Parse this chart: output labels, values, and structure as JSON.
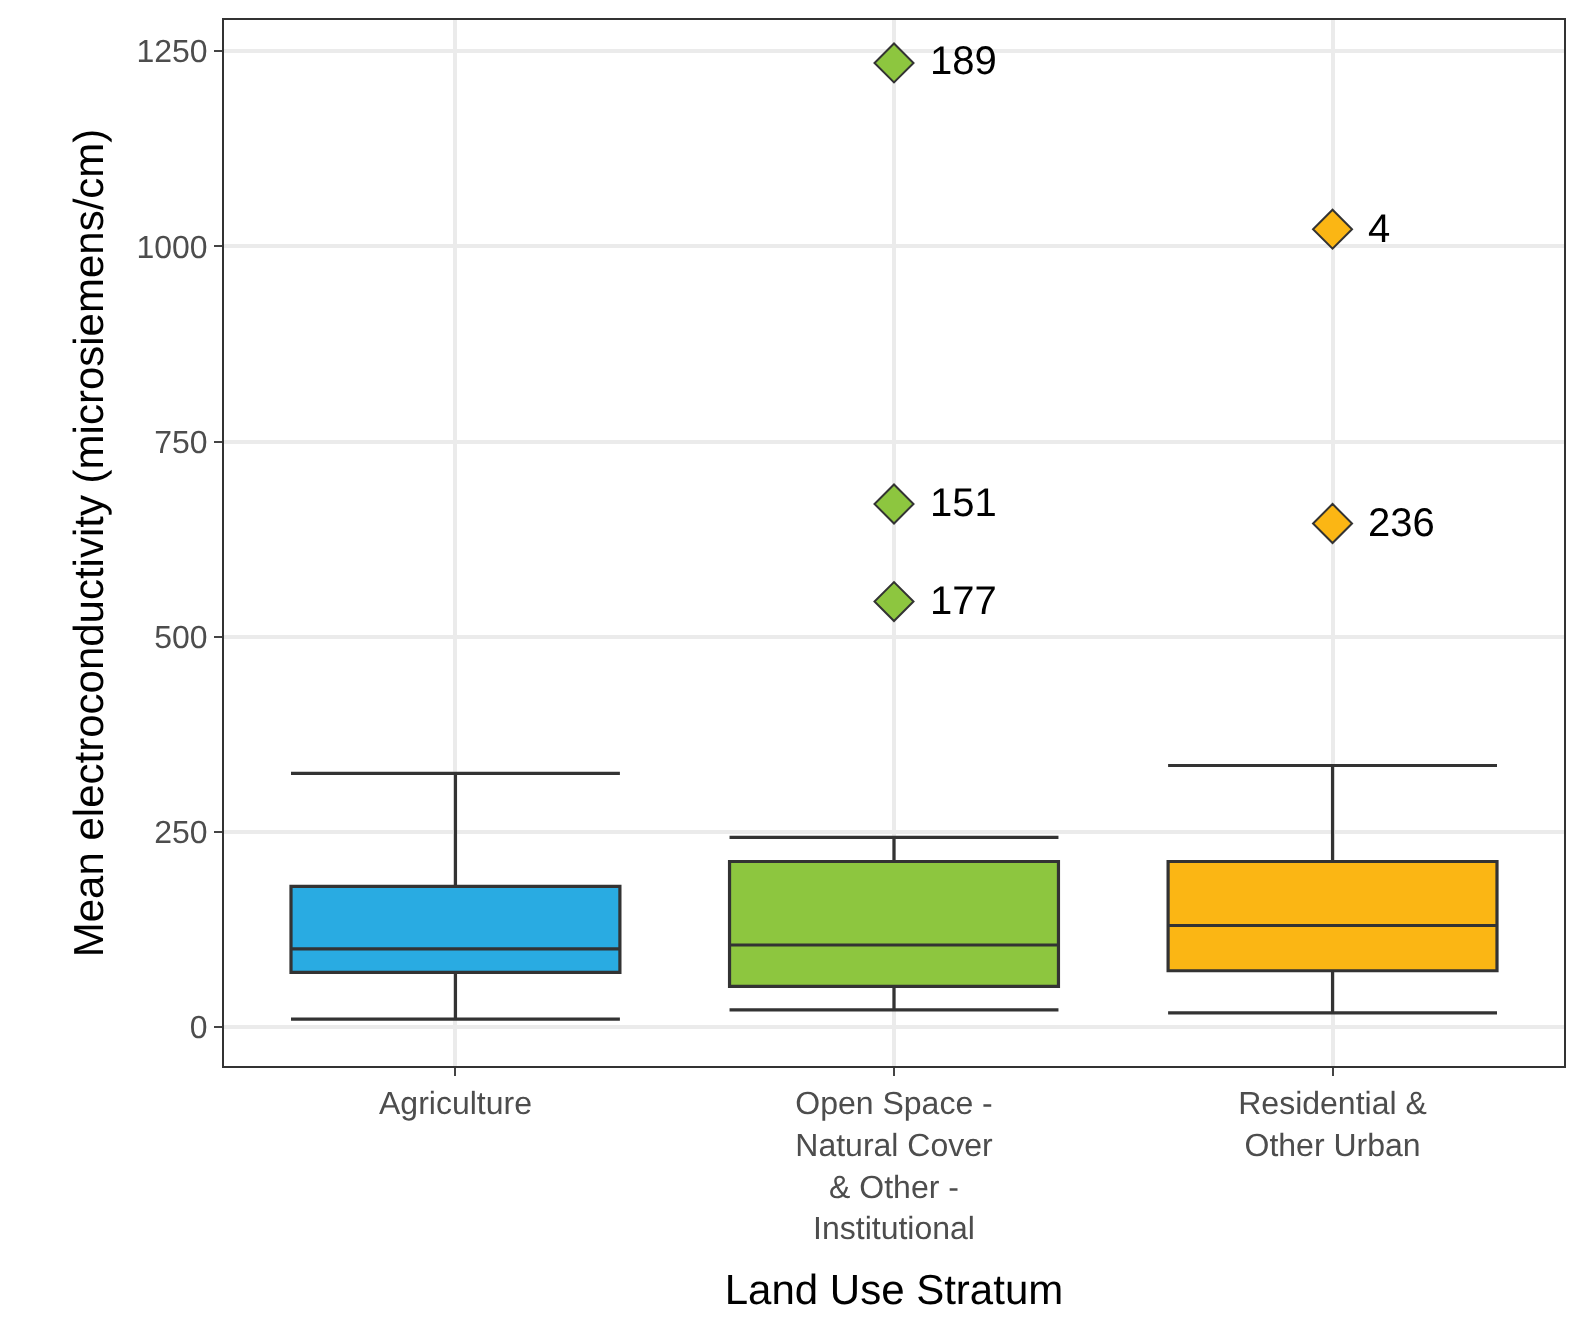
{
  "chart_data": {
    "type": "box",
    "xlabel": "Land Use Stratum",
    "ylabel": "Mean electroconductivity (microsiemens/cm)",
    "categories": [
      "Agriculture",
      "Open Space - Natural Cover & Other - Institutional",
      "Residential & Other Urban"
    ],
    "colors": [
      "#29abe2",
      "#8dc63f",
      "#fbb614"
    ],
    "boxes": [
      {
        "low": 10,
        "q1": 70,
        "median": 100,
        "q3": 180,
        "high": 325
      },
      {
        "low": 22,
        "q1": 52,
        "median": 105,
        "q3": 212,
        "high": 243,
        "outliers": [
          1235,
          670,
          545
        ]
      },
      {
        "low": 18,
        "q1": 72,
        "median": 130,
        "q3": 212,
        "high": 335,
        "outliers": [
          1022,
          645
        ]
      }
    ],
    "annotations": [
      "189",
      "151",
      "177",
      "4",
      "236"
    ],
    "ylim": [
      -50,
      1290
    ],
    "yticks": [
      0,
      250,
      500,
      750,
      1000,
      1250
    ],
    "grid": true,
    "marker": "diamond"
  }
}
